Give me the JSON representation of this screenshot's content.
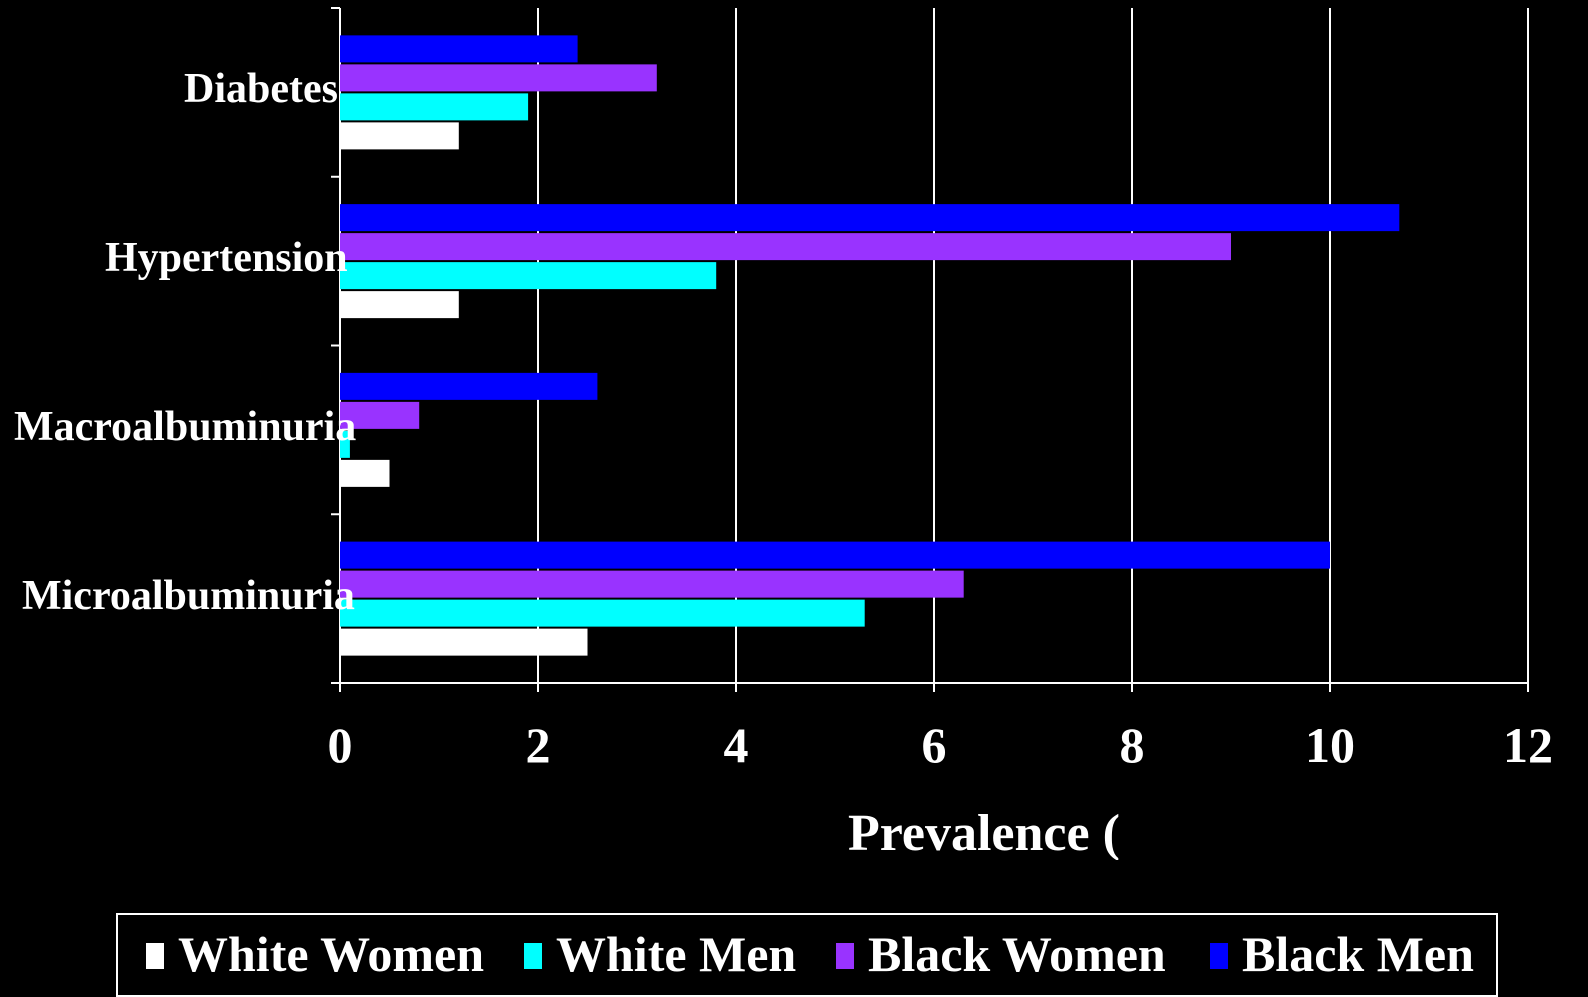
{
  "chart_data": {
    "type": "bar",
    "orientation": "horizontal",
    "categories": [
      "Diabetes",
      "Hypertension",
      "Macroalbuminuria",
      "Microalbuminuria"
    ],
    "series": [
      {
        "name": "White Women",
        "color": "#FFFFFF",
        "values": [
          1.2,
          1.2,
          0.5,
          2.5
        ]
      },
      {
        "name": "White Men",
        "color": "#00FFFF",
        "values": [
          1.9,
          3.8,
          0.1,
          5.3
        ]
      },
      {
        "name": "Black Women",
        "color": "#9933FF",
        "values": [
          3.2,
          9.0,
          0.8,
          6.3
        ]
      },
      {
        "name": "Black Men",
        "color": "#0000FF",
        "values": [
          2.4,
          10.7,
          2.6,
          10.0
        ]
      }
    ],
    "xlabel": "Prevalence (",
    "xlim": [
      0,
      12
    ],
    "xticks": [
      "0",
      "2",
      "4",
      "6",
      "8",
      "10",
      "12"
    ],
    "grid": true,
    "legend": "bottom",
    "background": "#000000"
  }
}
